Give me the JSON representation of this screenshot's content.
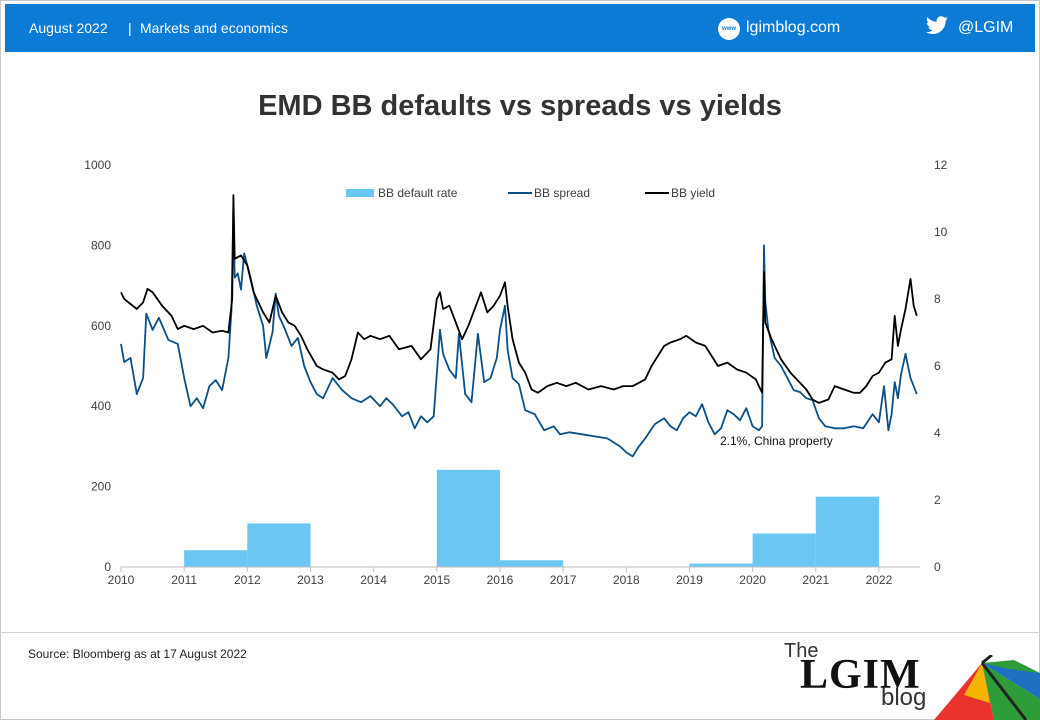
{
  "header": {
    "date": "August 2022",
    "separator": "|",
    "category": "Markets and economics",
    "web_icon_text": "www",
    "site": "lgimblog.com",
    "twitter_icon": "twitter-bird-icon",
    "handle": "@LGIM"
  },
  "colors": {
    "header_bg": "#0c7bd6",
    "default_bar": "#6ac6f2",
    "spread_line": "#0b4f87",
    "yield_line": "#000000"
  },
  "chart_data": {
    "type": "bar+line",
    "title": "EMD BB defaults vs spreads vs yields",
    "left_axis": {
      "range": [
        0,
        1000
      ],
      "ticks": [
        "0",
        "200",
        "400",
        "600",
        "800",
        "1000"
      ]
    },
    "right_axis": {
      "range": [
        0,
        12
      ],
      "ticks": [
        "0",
        "2",
        "4",
        "6",
        "8",
        "10",
        "12"
      ]
    },
    "x_ticks": [
      "2010",
      "2011",
      "2012",
      "2013",
      "2014",
      "2015",
      "2016",
      "2017",
      "2018",
      "2019",
      "2020",
      "2021",
      "2022"
    ],
    "x_range": [
      2010,
      2022.65
    ],
    "legend": [
      "BB default rate",
      "BB spread",
      "BB yield"
    ],
    "legend_position": "top-center",
    "annotation": "2.1%, China property",
    "series": [
      {
        "name": "BB default rate",
        "axis": "right",
        "type": "bar",
        "values": [
          {
            "x0": 2011,
            "x1": 2012,
            "y": 0.5
          },
          {
            "x0": 2012,
            "x1": 2013,
            "y": 1.3
          },
          {
            "x0": 2015,
            "x1": 2016,
            "y": 2.9
          },
          {
            "x0": 2016,
            "x1": 2017,
            "y": 0.2
          },
          {
            "x0": 2019,
            "x1": 2020,
            "y": 0.1
          },
          {
            "x0": 2020,
            "x1": 2021,
            "y": 1.0
          },
          {
            "x0": 2021,
            "x1": 2022,
            "y": 2.1
          }
        ]
      },
      {
        "name": "BB spread",
        "axis": "left",
        "type": "line",
        "points": [
          [
            2010.0,
            555
          ],
          [
            2010.05,
            510
          ],
          [
            2010.15,
            520
          ],
          [
            2010.25,
            430
          ],
          [
            2010.35,
            470
          ],
          [
            2010.4,
            630
          ],
          [
            2010.5,
            590
          ],
          [
            2010.6,
            620
          ],
          [
            2010.75,
            565
          ],
          [
            2010.9,
            555
          ],
          [
            2011.0,
            470
          ],
          [
            2011.1,
            400
          ],
          [
            2011.2,
            420
          ],
          [
            2011.3,
            395
          ],
          [
            2011.4,
            450
          ],
          [
            2011.5,
            465
          ],
          [
            2011.6,
            440
          ],
          [
            2011.7,
            520
          ],
          [
            2011.75,
            640
          ],
          [
            2011.78,
            900
          ],
          [
            2011.8,
            720
          ],
          [
            2011.85,
            730
          ],
          [
            2011.9,
            690
          ],
          [
            2011.95,
            780
          ],
          [
            2012.05,
            720
          ],
          [
            2012.15,
            650
          ],
          [
            2012.25,
            600
          ],
          [
            2012.3,
            520
          ],
          [
            2012.4,
            585
          ],
          [
            2012.45,
            680
          ],
          [
            2012.5,
            625
          ],
          [
            2012.6,
            590
          ],
          [
            2012.7,
            550
          ],
          [
            2012.8,
            570
          ],
          [
            2012.9,
            500
          ],
          [
            2013.0,
            460
          ],
          [
            2013.1,
            430
          ],
          [
            2013.2,
            420
          ],
          [
            2013.35,
            470
          ],
          [
            2013.5,
            440
          ],
          [
            2013.65,
            420
          ],
          [
            2013.8,
            410
          ],
          [
            2013.95,
            425
          ],
          [
            2014.1,
            400
          ],
          [
            2014.2,
            420
          ],
          [
            2014.3,
            405
          ],
          [
            2014.45,
            375
          ],
          [
            2014.55,
            385
          ],
          [
            2014.65,
            345
          ],
          [
            2014.75,
            375
          ],
          [
            2014.85,
            360
          ],
          [
            2014.95,
            375
          ],
          [
            2015.05,
            590
          ],
          [
            2015.1,
            530
          ],
          [
            2015.2,
            490
          ],
          [
            2015.3,
            470
          ],
          [
            2015.35,
            580
          ],
          [
            2015.45,
            430
          ],
          [
            2015.55,
            410
          ],
          [
            2015.65,
            580
          ],
          [
            2015.75,
            460
          ],
          [
            2015.85,
            470
          ],
          [
            2015.95,
            520
          ],
          [
            2016.0,
            590
          ],
          [
            2016.08,
            650
          ],
          [
            2016.12,
            540
          ],
          [
            2016.2,
            470
          ],
          [
            2016.3,
            455
          ],
          [
            2016.4,
            390
          ],
          [
            2016.55,
            380
          ],
          [
            2016.7,
            340
          ],
          [
            2016.85,
            350
          ],
          [
            2016.95,
            330
          ],
          [
            2017.1,
            335
          ],
          [
            2017.3,
            330
          ],
          [
            2017.5,
            325
          ],
          [
            2017.7,
            320
          ],
          [
            2017.9,
            300
          ],
          [
            2018.0,
            285
          ],
          [
            2018.1,
            275
          ],
          [
            2018.2,
            300
          ],
          [
            2018.3,
            320
          ],
          [
            2018.45,
            355
          ],
          [
            2018.6,
            370
          ],
          [
            2018.7,
            350
          ],
          [
            2018.8,
            340
          ],
          [
            2018.9,
            370
          ],
          [
            2019.0,
            385
          ],
          [
            2019.1,
            375
          ],
          [
            2019.2,
            405
          ],
          [
            2019.3,
            360
          ],
          [
            2019.4,
            330
          ],
          [
            2019.5,
            345
          ],
          [
            2019.6,
            390
          ],
          [
            2019.7,
            380
          ],
          [
            2019.8,
            365
          ],
          [
            2019.9,
            395
          ],
          [
            2020.0,
            350
          ],
          [
            2020.1,
            340
          ],
          [
            2020.15,
            350
          ],
          [
            2020.18,
            800
          ],
          [
            2020.2,
            660
          ],
          [
            2020.25,
            590
          ],
          [
            2020.35,
            520
          ],
          [
            2020.45,
            500
          ],
          [
            2020.55,
            470
          ],
          [
            2020.65,
            440
          ],
          [
            2020.75,
            435
          ],
          [
            2020.85,
            420
          ],
          [
            2020.95,
            415
          ],
          [
            2021.05,
            370
          ],
          [
            2021.15,
            350
          ],
          [
            2021.3,
            345
          ],
          [
            2021.45,
            345
          ],
          [
            2021.6,
            350
          ],
          [
            2021.75,
            345
          ],
          [
            2021.9,
            380
          ],
          [
            2022.0,
            360
          ],
          [
            2022.08,
            450
          ],
          [
            2022.15,
            340
          ],
          [
            2022.2,
            380
          ],
          [
            2022.25,
            460
          ],
          [
            2022.3,
            420
          ],
          [
            2022.35,
            480
          ],
          [
            2022.42,
            530
          ],
          [
            2022.5,
            470
          ],
          [
            2022.6,
            430
          ]
        ]
      },
      {
        "name": "BB yield",
        "axis": "right",
        "type": "line",
        "points": [
          [
            2010.0,
            8.2
          ],
          [
            2010.05,
            8.0
          ],
          [
            2010.15,
            7.85
          ],
          [
            2010.25,
            7.7
          ],
          [
            2010.35,
            7.9
          ],
          [
            2010.42,
            8.3
          ],
          [
            2010.5,
            8.2
          ],
          [
            2010.65,
            7.8
          ],
          [
            2010.8,
            7.5
          ],
          [
            2010.9,
            7.1
          ],
          [
            2011.0,
            7.2
          ],
          [
            2011.15,
            7.1
          ],
          [
            2011.3,
            7.2
          ],
          [
            2011.45,
            7.0
          ],
          [
            2011.6,
            7.05
          ],
          [
            2011.7,
            7.0
          ],
          [
            2011.76,
            8.0
          ],
          [
            2011.78,
            11.1
          ],
          [
            2011.8,
            9.2
          ],
          [
            2011.9,
            9.3
          ],
          [
            2012.0,
            9.0
          ],
          [
            2012.1,
            8.2
          ],
          [
            2012.25,
            7.6
          ],
          [
            2012.35,
            7.3
          ],
          [
            2012.45,
            8.1
          ],
          [
            2012.55,
            7.6
          ],
          [
            2012.65,
            7.3
          ],
          [
            2012.75,
            7.2
          ],
          [
            2012.85,
            6.9
          ],
          [
            2012.95,
            6.5
          ],
          [
            2013.1,
            6.0
          ],
          [
            2013.2,
            5.9
          ],
          [
            2013.35,
            5.8
          ],
          [
            2013.45,
            5.6
          ],
          [
            2013.55,
            5.7
          ],
          [
            2013.65,
            6.2
          ],
          [
            2013.75,
            7.0
          ],
          [
            2013.85,
            6.8
          ],
          [
            2013.95,
            6.9
          ],
          [
            2014.1,
            6.8
          ],
          [
            2014.25,
            6.9
          ],
          [
            2014.4,
            6.5
          ],
          [
            2014.6,
            6.6
          ],
          [
            2014.75,
            6.2
          ],
          [
            2014.9,
            6.5
          ],
          [
            2015.0,
            8.0
          ],
          [
            2015.05,
            8.2
          ],
          [
            2015.1,
            7.7
          ],
          [
            2015.2,
            7.8
          ],
          [
            2015.3,
            7.3
          ],
          [
            2015.4,
            6.8
          ],
          [
            2015.5,
            7.2
          ],
          [
            2015.6,
            7.7
          ],
          [
            2015.7,
            8.2
          ],
          [
            2015.8,
            7.6
          ],
          [
            2015.9,
            7.8
          ],
          [
            2016.0,
            8.1
          ],
          [
            2016.08,
            8.5
          ],
          [
            2016.12,
            7.8
          ],
          [
            2016.2,
            6.8
          ],
          [
            2016.3,
            6.1
          ],
          [
            2016.4,
            5.8
          ],
          [
            2016.5,
            5.3
          ],
          [
            2016.6,
            5.2
          ],
          [
            2016.75,
            5.4
          ],
          [
            2016.9,
            5.5
          ],
          [
            2017.05,
            5.4
          ],
          [
            2017.2,
            5.5
          ],
          [
            2017.4,
            5.3
          ],
          [
            2017.6,
            5.4
          ],
          [
            2017.8,
            5.3
          ],
          [
            2017.95,
            5.4
          ],
          [
            2018.1,
            5.4
          ],
          [
            2018.2,
            5.5
          ],
          [
            2018.3,
            5.6
          ],
          [
            2018.4,
            6.0
          ],
          [
            2018.5,
            6.3
          ],
          [
            2018.6,
            6.6
          ],
          [
            2018.7,
            6.7
          ],
          [
            2018.85,
            6.8
          ],
          [
            2018.95,
            6.9
          ],
          [
            2019.1,
            6.7
          ],
          [
            2019.25,
            6.6
          ],
          [
            2019.35,
            6.3
          ],
          [
            2019.45,
            6.0
          ],
          [
            2019.6,
            6.1
          ],
          [
            2019.75,
            5.9
          ],
          [
            2019.9,
            5.8
          ],
          [
            2020.05,
            5.6
          ],
          [
            2020.15,
            5.2
          ],
          [
            2020.18,
            8.8
          ],
          [
            2020.2,
            7.3
          ],
          [
            2020.3,
            6.8
          ],
          [
            2020.45,
            6.2
          ],
          [
            2020.6,
            5.8
          ],
          [
            2020.75,
            5.5
          ],
          [
            2020.85,
            5.3
          ],
          [
            2020.95,
            5.0
          ],
          [
            2021.05,
            4.9
          ],
          [
            2021.2,
            5.0
          ],
          [
            2021.3,
            5.4
          ],
          [
            2021.45,
            5.3
          ],
          [
            2021.6,
            5.2
          ],
          [
            2021.7,
            5.2
          ],
          [
            2021.8,
            5.4
          ],
          [
            2021.9,
            5.7
          ],
          [
            2022.0,
            5.8
          ],
          [
            2022.1,
            6.1
          ],
          [
            2022.2,
            6.2
          ],
          [
            2022.25,
            7.5
          ],
          [
            2022.3,
            6.6
          ],
          [
            2022.35,
            7.1
          ],
          [
            2022.42,
            7.7
          ],
          [
            2022.5,
            8.6
          ],
          [
            2022.55,
            7.8
          ],
          [
            2022.6,
            7.5
          ]
        ]
      }
    ]
  },
  "footer": {
    "source": "Source: Bloomberg as at 17 August 2022",
    "logo_the": "The",
    "logo_main": "LGIM",
    "logo_blog": "blog"
  }
}
